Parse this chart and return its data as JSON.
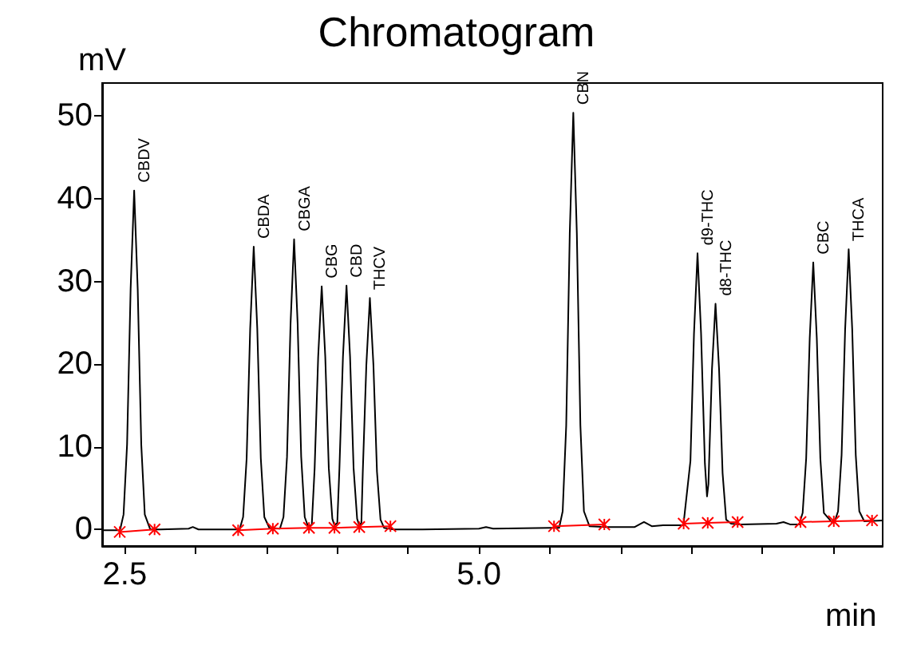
{
  "chart_data": {
    "type": "line",
    "title": "Chromatogram",
    "xlabel": "min",
    "ylabel": "mV",
    "xlim": [
      2.34,
      7.85
    ],
    "ylim": [
      -2,
      54
    ],
    "xticks": [
      {
        "value": 2.5,
        "label": "2.5"
      },
      {
        "value": 3,
        "label": null
      },
      {
        "value": 3.5,
        "label": null
      },
      {
        "value": 4,
        "label": null
      },
      {
        "value": 4.5,
        "label": null
      },
      {
        "value": 5,
        "label": "5.0"
      },
      {
        "value": 5.5,
        "label": null
      },
      {
        "value": 6,
        "label": null
      },
      {
        "value": 6.5,
        "label": null
      },
      {
        "value": 7,
        "label": null
      },
      {
        "value": 7.5,
        "label": null
      }
    ],
    "yticks": [
      0,
      10,
      20,
      30,
      40,
      50
    ],
    "grid": false,
    "marker": "none",
    "line_style": "solid",
    "series": [
      {
        "color": "#000000",
        "x": [
          2.34,
          2.45,
          2.466,
          2.491,
          2.516,
          2.541,
          2.566,
          2.591,
          2.616,
          2.641,
          2.68,
          2.75,
          2.95,
          2.98,
          3.02,
          3.31,
          3.335,
          3.36,
          3.385,
          3.41,
          3.435,
          3.46,
          3.485,
          3.52,
          3.595,
          3.62,
          3.645,
          3.67,
          3.695,
          3.72,
          3.745,
          3.77,
          3.795,
          3.82,
          3.84,
          3.865,
          3.89,
          3.915,
          3.94,
          3.965,
          3.98,
          4.0,
          4.015,
          4.04,
          4.065,
          4.09,
          4.115,
          4.14,
          4.155,
          4.17,
          4.18,
          4.205,
          4.23,
          4.255,
          4.28,
          4.305,
          4.33,
          4.4,
          4.6,
          5.0,
          5.05,
          5.1,
          5.5,
          5.566,
          5.591,
          5.616,
          5.641,
          5.666,
          5.691,
          5.716,
          5.741,
          5.78,
          5.9,
          6.1,
          6.165,
          6.22,
          6.3,
          6.443,
          6.493,
          6.518,
          6.543,
          6.568,
          6.595,
          6.61,
          6.62,
          6.645,
          6.67,
          6.695,
          6.72,
          6.745,
          6.78,
          6.85,
          7.1,
          7.15,
          7.2,
          7.26,
          7.285,
          7.31,
          7.335,
          7.36,
          7.385,
          7.41,
          7.435,
          7.49,
          7.51,
          7.535,
          7.56,
          7.585,
          7.61,
          7.635,
          7.66,
          7.685,
          7.72,
          7.85
        ],
        "values": [
          -0.1,
          -0.1,
          -0.1,
          1.8,
          10.3,
          29.1,
          41,
          29.1,
          10.3,
          1.8,
          0,
          0,
          0.1,
          0.3,
          0,
          0,
          1.5,
          8.6,
          24.3,
          34.2,
          24.3,
          8.6,
          1.5,
          0.2,
          0.1,
          1.5,
          8.8,
          24.9,
          35.1,
          24.9,
          8.8,
          1.5,
          0.3,
          0.6,
          7.4,
          20.9,
          29.4,
          20.9,
          7.4,
          1.3,
          0.5,
          0.8,
          7.4,
          20.9,
          29.5,
          20.9,
          7.4,
          1.3,
          0.5,
          0.8,
          7,
          19.9,
          28,
          19.9,
          7,
          1.2,
          0.2,
          0,
          0,
          0.1,
          0.3,
          0.1,
          0.2,
          0.2,
          2.2,
          12.6,
          35.8,
          50.4,
          35.8,
          12.6,
          2.2,
          0.4,
          0.3,
          0.3,
          0.9,
          0.4,
          0.5,
          0.5,
          8.3,
          23.7,
          33.4,
          23.7,
          8,
          4,
          5.5,
          19.4,
          27.3,
          19.4,
          6.8,
          1.2,
          0.7,
          0.6,
          0.7,
          0.9,
          0.6,
          0.6,
          2,
          8.6,
          23.1,
          32.3,
          23.1,
          8.6,
          2,
          0.9,
          0.9,
          2.2,
          9,
          24.2,
          33.9,
          24.2,
          9,
          2.2,
          1,
          1.1
        ]
      },
      {
        "color": "#ff0000",
        "marker": "cross",
        "x": [
          2.464,
          2.71,
          3.0,
          3.3,
          3.545,
          3.8,
          3.98,
          4.155,
          4.375,
          5.0,
          5.53,
          5.885,
          6.2,
          6.445,
          6.615,
          6.826,
          7.0,
          7.27,
          7.505,
          7.775
        ],
        "values": [
          -0.3,
          0,
          null,
          -0.1,
          0.1,
          0.2,
          0.2,
          0.3,
          0.4,
          null,
          0.4,
          0.6,
          null,
          0.7,
          0.8,
          0.9,
          null,
          0.9,
          1.0,
          1.1
        ]
      }
    ],
    "annotations": [
      {
        "text": "CBDV",
        "x": 2.566,
        "y": 41
      },
      {
        "text": "CBDA",
        "x": 3.41,
        "y": 34.2
      },
      {
        "text": "CBGA",
        "x": 3.695,
        "y": 35.1
      },
      {
        "text": "CBG",
        "x": 3.89,
        "y": 29.4
      },
      {
        "text": "CBD",
        "x": 4.065,
        "y": 29.5
      },
      {
        "text": "THCV",
        "x": 4.23,
        "y": 28
      },
      {
        "text": "CBN",
        "x": 5.666,
        "y": 50.4
      },
      {
        "text": "d9-THC",
        "x": 6.543,
        "y": 33.4
      },
      {
        "text": "d8-THC",
        "x": 6.67,
        "y": 27.3
      },
      {
        "text": "CBC",
        "x": 7.36,
        "y": 32.3
      },
      {
        "text": "THCA",
        "x": 7.61,
        "y": 33.9
      }
    ]
  }
}
